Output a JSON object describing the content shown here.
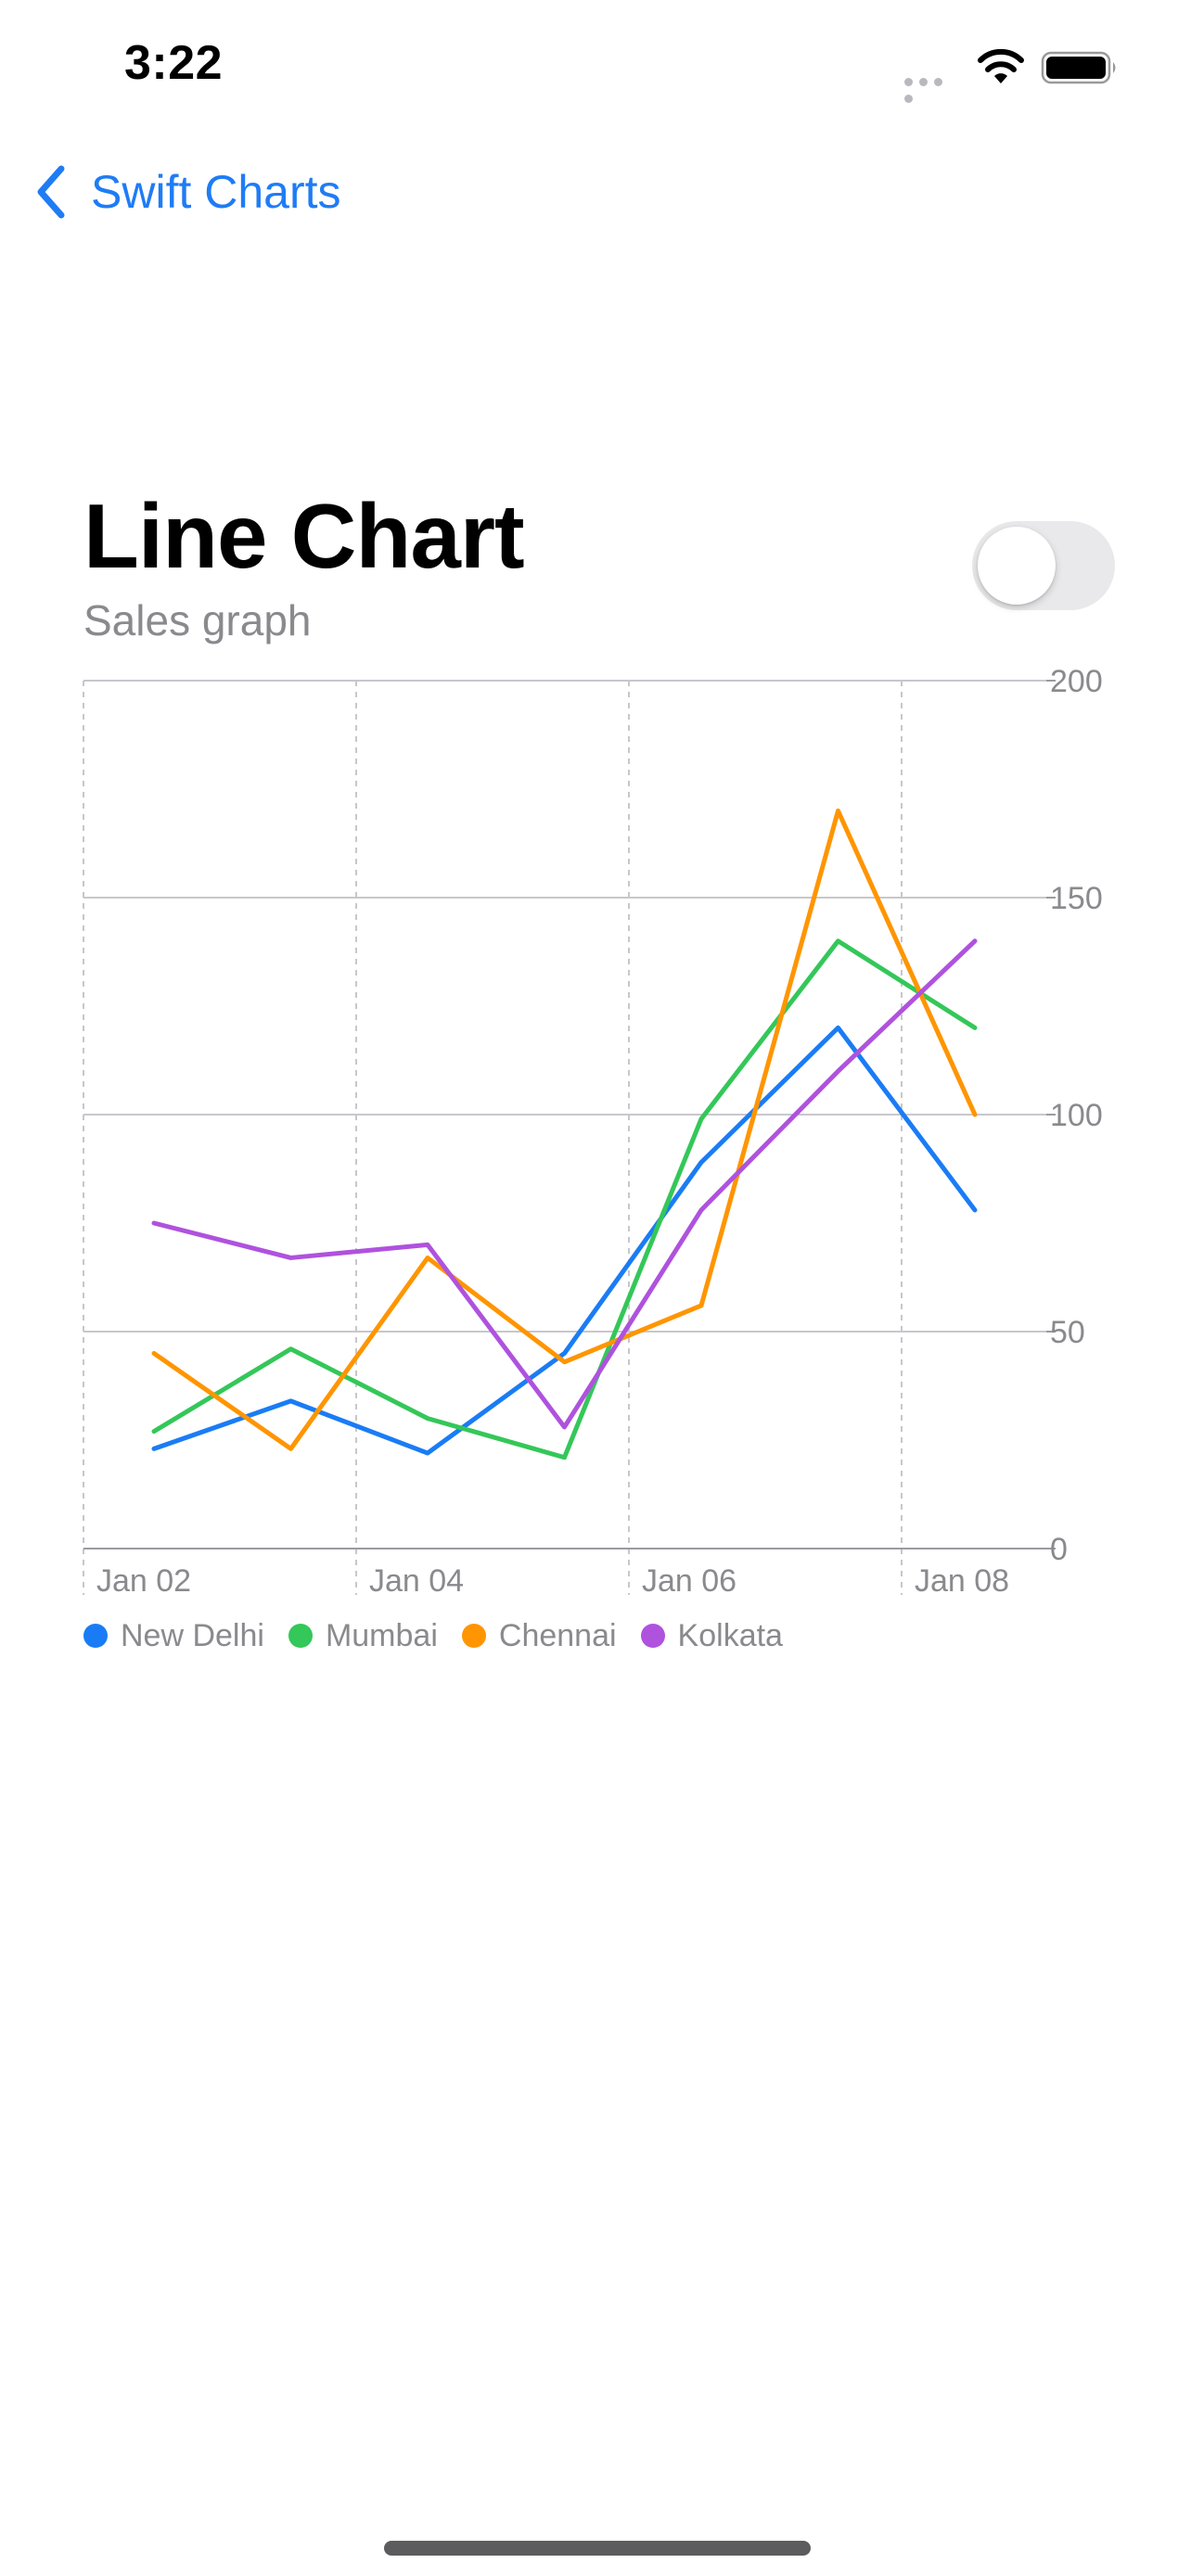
{
  "status_bar": {
    "time": "3:22"
  },
  "nav": {
    "back_label": "Swift Charts"
  },
  "header": {
    "title": "Line Chart",
    "subtitle": "Sales graph"
  },
  "toggle": {
    "on": false
  },
  "colors": {
    "accent": "#1f7cf5",
    "new_delhi": "#1a7cf5",
    "mumbai": "#34c759",
    "chennai": "#ff9500",
    "kolkata": "#af52de"
  },
  "chart_data": {
    "type": "line",
    "title": "",
    "xlabel": "",
    "ylabel": "",
    "x": [
      "Jan 02",
      "Jan 03",
      "Jan 04",
      "Jan 05",
      "Jan 06",
      "Jan 07",
      "Jan 08"
    ],
    "x_tick_labels": [
      "Jan 02",
      "Jan 04",
      "Jan 06",
      "Jan 08"
    ],
    "y_ticks": [
      0,
      50,
      100,
      150,
      200
    ],
    "ylim": [
      0,
      200
    ],
    "grid": true,
    "legend_position": "bottom-left",
    "series": [
      {
        "name": "New Delhi",
        "color": "#1a7cf5",
        "values": [
          23,
          34,
          22,
          45,
          89,
          120,
          78
        ]
      },
      {
        "name": "Mumbai",
        "color": "#34c759",
        "values": [
          27,
          46,
          30,
          21,
          99,
          140,
          120
        ]
      },
      {
        "name": "Chennai",
        "color": "#ff9500",
        "values": [
          45,
          23,
          67,
          43,
          56,
          170,
          100
        ]
      },
      {
        "name": "Kolkata",
        "color": "#af52de",
        "values": [
          75,
          67,
          70,
          28,
          78,
          110,
          140
        ]
      }
    ]
  }
}
